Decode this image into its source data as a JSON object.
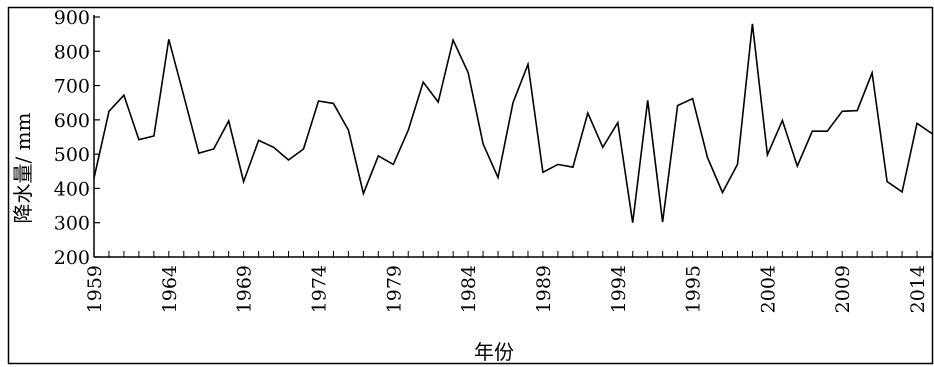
{
  "chart_data": {
    "type": "line",
    "xlabel": "年份",
    "ylabel": "降水量/ mm",
    "ylim": [
      200,
      900
    ],
    "yticks": [
      200,
      300,
      400,
      500,
      600,
      700,
      800,
      900
    ],
    "xtick_labels": [
      "1959",
      "1964",
      "1969",
      "1974",
      "1979",
      "1984",
      "1989",
      "1994",
      "1995",
      "2004",
      "2009",
      "2014"
    ],
    "grid": false,
    "series": [
      {
        "values": [
          430,
          625,
          672,
          542,
          553,
          835,
          670,
          503,
          515,
          597,
          420,
          540,
          520,
          483,
          515,
          655,
          648,
          570,
          385,
          495,
          470,
          570,
          710,
          652,
          833,
          738,
          530,
          432,
          650,
          762,
          447,
          470,
          462,
          620,
          520,
          592,
          300,
          657,
          302,
          642,
          662,
          490,
          388,
          470,
          880,
          498,
          598,
          465,
          567,
          567,
          625,
          627,
          737,
          420,
          390,
          590,
          560
        ]
      }
    ]
  }
}
